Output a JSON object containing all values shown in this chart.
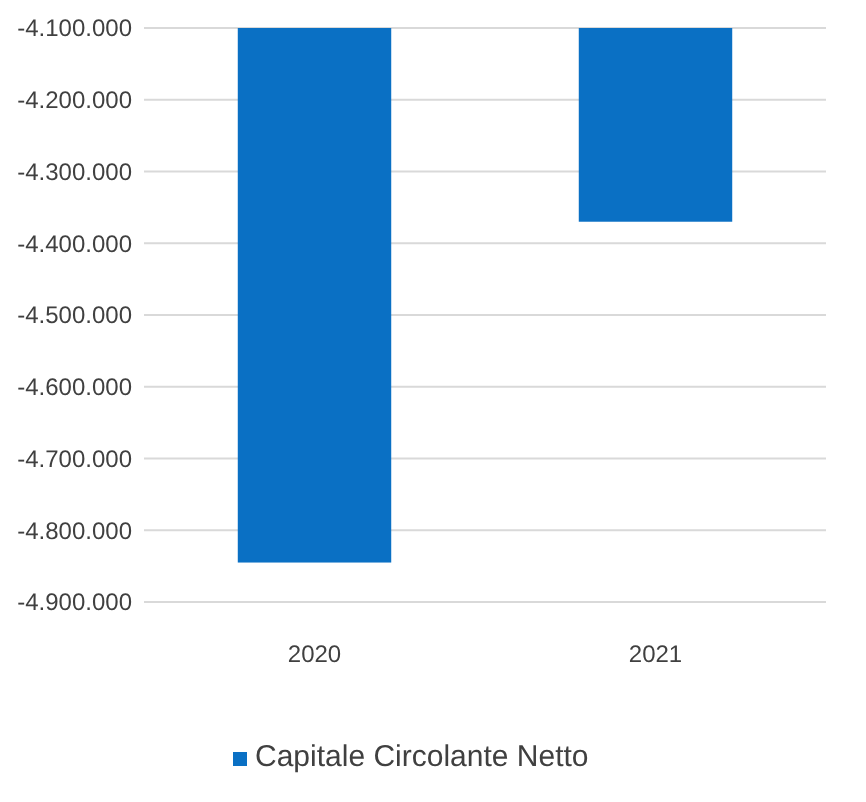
{
  "chart_data": {
    "type": "bar",
    "categories": [
      "2020",
      "2021"
    ],
    "series": [
      {
        "name": "Capitale Circolante Netto",
        "color": "#0a70c4",
        "values": [
          -4845000,
          -4370000
        ]
      }
    ],
    "ylim": [
      -4900000,
      -4100000
    ],
    "yticks": [
      {
        "value": -4900000,
        "label": "-4.900.000"
      },
      {
        "value": -4800000,
        "label": "-4.800.000"
      },
      {
        "value": -4700000,
        "label": "-4.700.000"
      },
      {
        "value": -4600000,
        "label": "-4.600.000"
      },
      {
        "value": -4500000,
        "label": "-4.500.000"
      },
      {
        "value": -4400000,
        "label": "-4.400.000"
      },
      {
        "value": -4300000,
        "label": "-4.300.000"
      },
      {
        "value": -4200000,
        "label": "-4.200.000"
      },
      {
        "value": -4100000,
        "label": "-4.100.000"
      }
    ],
    "grid": "y",
    "legend": "bottom"
  }
}
